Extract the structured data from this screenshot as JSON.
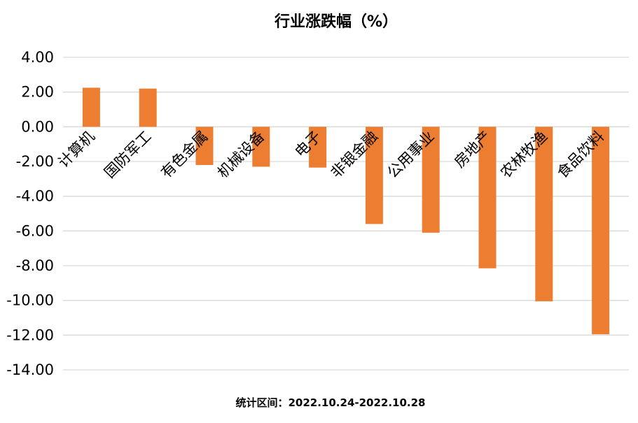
{
  "chart_data": {
    "type": "bar",
    "title": "行业涨跌幅（%）",
    "categories": [
      "计算机",
      "国防军工",
      "有色金属",
      "机械设备",
      "电子",
      "非银金融",
      "公用事业",
      "房地产",
      "农林牧渔",
      "食品饮料"
    ],
    "values": [
      2.25,
      2.2,
      -2.2,
      -2.3,
      -2.35,
      -5.6,
      -6.1,
      -8.15,
      -10.05,
      -11.95
    ],
    "ylim": [
      -14,
      4
    ],
    "yticks": [
      "4.00",
      "2.00",
      "0.00",
      "-2.00",
      "-4.00",
      "-6.00",
      "-8.00",
      "-10.00",
      "-12.00",
      "-14.00"
    ],
    "bar_color": "#ED7D31",
    "grid_color": "#D9D9D9",
    "grid": true,
    "footnote": "统计区间：2022.10.24-2022.10.28"
  }
}
